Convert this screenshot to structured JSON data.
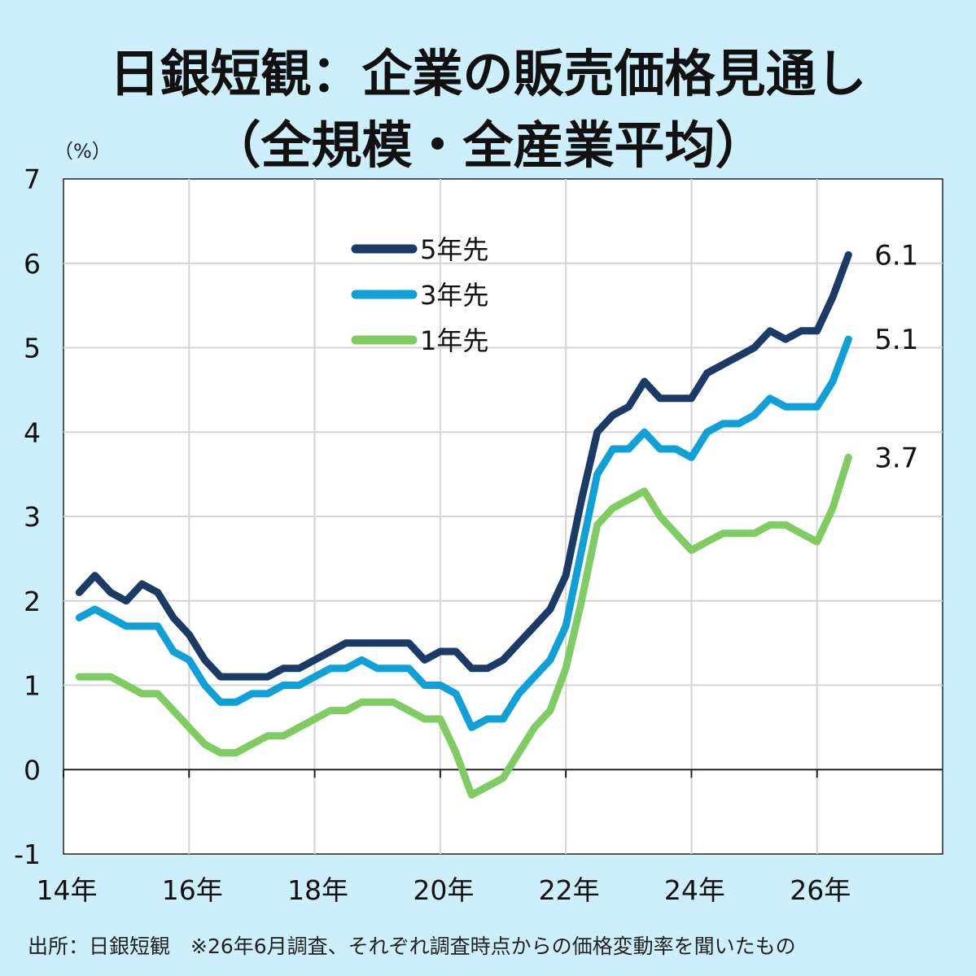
{
  "title_line1": "日銀短観：企業の販売価格見通し",
  "title_line2": "（全規模・全産業平均）",
  "unit_label": "（%）",
  "source_note": "出所：日銀短観　※26年6月調査、それぞれ調査時点からの価格変動率を聞いたもの",
  "chart_data": {
    "type": "line",
    "title": "日銀短観：企業の販売価格見通し（全規模・全産業平均）",
    "ylabel": "（%）",
    "xlabel": "",
    "ylim": [
      -1,
      7
    ],
    "xlim": [
      14,
      28
    ],
    "grid": true,
    "legend_position": "top-center",
    "y_ticks": [
      "-1",
      "0",
      "1",
      "2",
      "3",
      "4",
      "5",
      "6",
      "7"
    ],
    "x_ticks": [
      "14年",
      "16年",
      "18年",
      "20年",
      "22年",
      "24年",
      "26年"
    ],
    "x": [
      14.25,
      14.5,
      14.75,
      15.0,
      15.25,
      15.5,
      15.75,
      16.0,
      16.25,
      16.5,
      16.75,
      17.0,
      17.25,
      17.5,
      17.75,
      18.0,
      18.25,
      18.5,
      18.75,
      19.0,
      19.25,
      19.5,
      19.75,
      20.0,
      20.25,
      20.5,
      20.75,
      21.0,
      21.25,
      21.5,
      21.75,
      22.0,
      22.25,
      22.5,
      22.75,
      23.0,
      23.25,
      23.5,
      23.75,
      24.0,
      24.25,
      24.5,
      24.75,
      25.0,
      25.25,
      25.5,
      25.75,
      26.0,
      26.25,
      26.5
    ],
    "series": [
      {
        "name": "5年先",
        "color": "#1b3a66",
        "end_label": "6.1",
        "values": [
          2.1,
          2.3,
          2.1,
          2.0,
          2.2,
          2.1,
          1.8,
          1.6,
          1.3,
          1.1,
          1.1,
          1.1,
          1.1,
          1.2,
          1.2,
          1.3,
          1.4,
          1.5,
          1.5,
          1.5,
          1.5,
          1.5,
          1.3,
          1.4,
          1.4,
          1.2,
          1.2,
          1.3,
          1.5,
          1.7,
          1.9,
          2.3,
          3.2,
          4.0,
          4.2,
          4.3,
          4.6,
          4.4,
          4.4,
          4.4,
          4.7,
          4.8,
          4.9,
          5.0,
          5.2,
          5.1,
          5.2,
          5.2,
          5.6,
          6.1
        ]
      },
      {
        "name": "3年先",
        "color": "#0fa0d8",
        "end_label": "5.1",
        "values": [
          1.8,
          1.9,
          1.8,
          1.7,
          1.7,
          1.7,
          1.4,
          1.3,
          1.0,
          0.8,
          0.8,
          0.9,
          0.9,
          1.0,
          1.0,
          1.1,
          1.2,
          1.2,
          1.3,
          1.2,
          1.2,
          1.2,
          1.0,
          1.0,
          0.9,
          0.5,
          0.6,
          0.6,
          0.9,
          1.1,
          1.3,
          1.7,
          2.6,
          3.5,
          3.8,
          3.8,
          4.0,
          3.8,
          3.8,
          3.7,
          4.0,
          4.1,
          4.1,
          4.2,
          4.4,
          4.3,
          4.3,
          4.3,
          4.6,
          5.1
        ]
      },
      {
        "name": "1年先",
        "color": "#7fcc63",
        "end_label": "3.7",
        "values": [
          1.1,
          1.1,
          1.1,
          1.0,
          0.9,
          0.9,
          0.7,
          0.5,
          0.3,
          0.2,
          0.2,
          0.3,
          0.4,
          0.4,
          0.5,
          0.6,
          0.7,
          0.7,
          0.8,
          0.8,
          0.8,
          0.7,
          0.6,
          0.6,
          0.2,
          -0.3,
          -0.2,
          -0.1,
          0.2,
          0.5,
          0.7,
          1.2,
          2.0,
          2.9,
          3.1,
          3.2,
          3.3,
          3.0,
          2.8,
          2.6,
          2.7,
          2.8,
          2.8,
          2.8,
          2.9,
          2.9,
          2.8,
          2.7,
          3.1,
          3.7
        ]
      }
    ]
  }
}
